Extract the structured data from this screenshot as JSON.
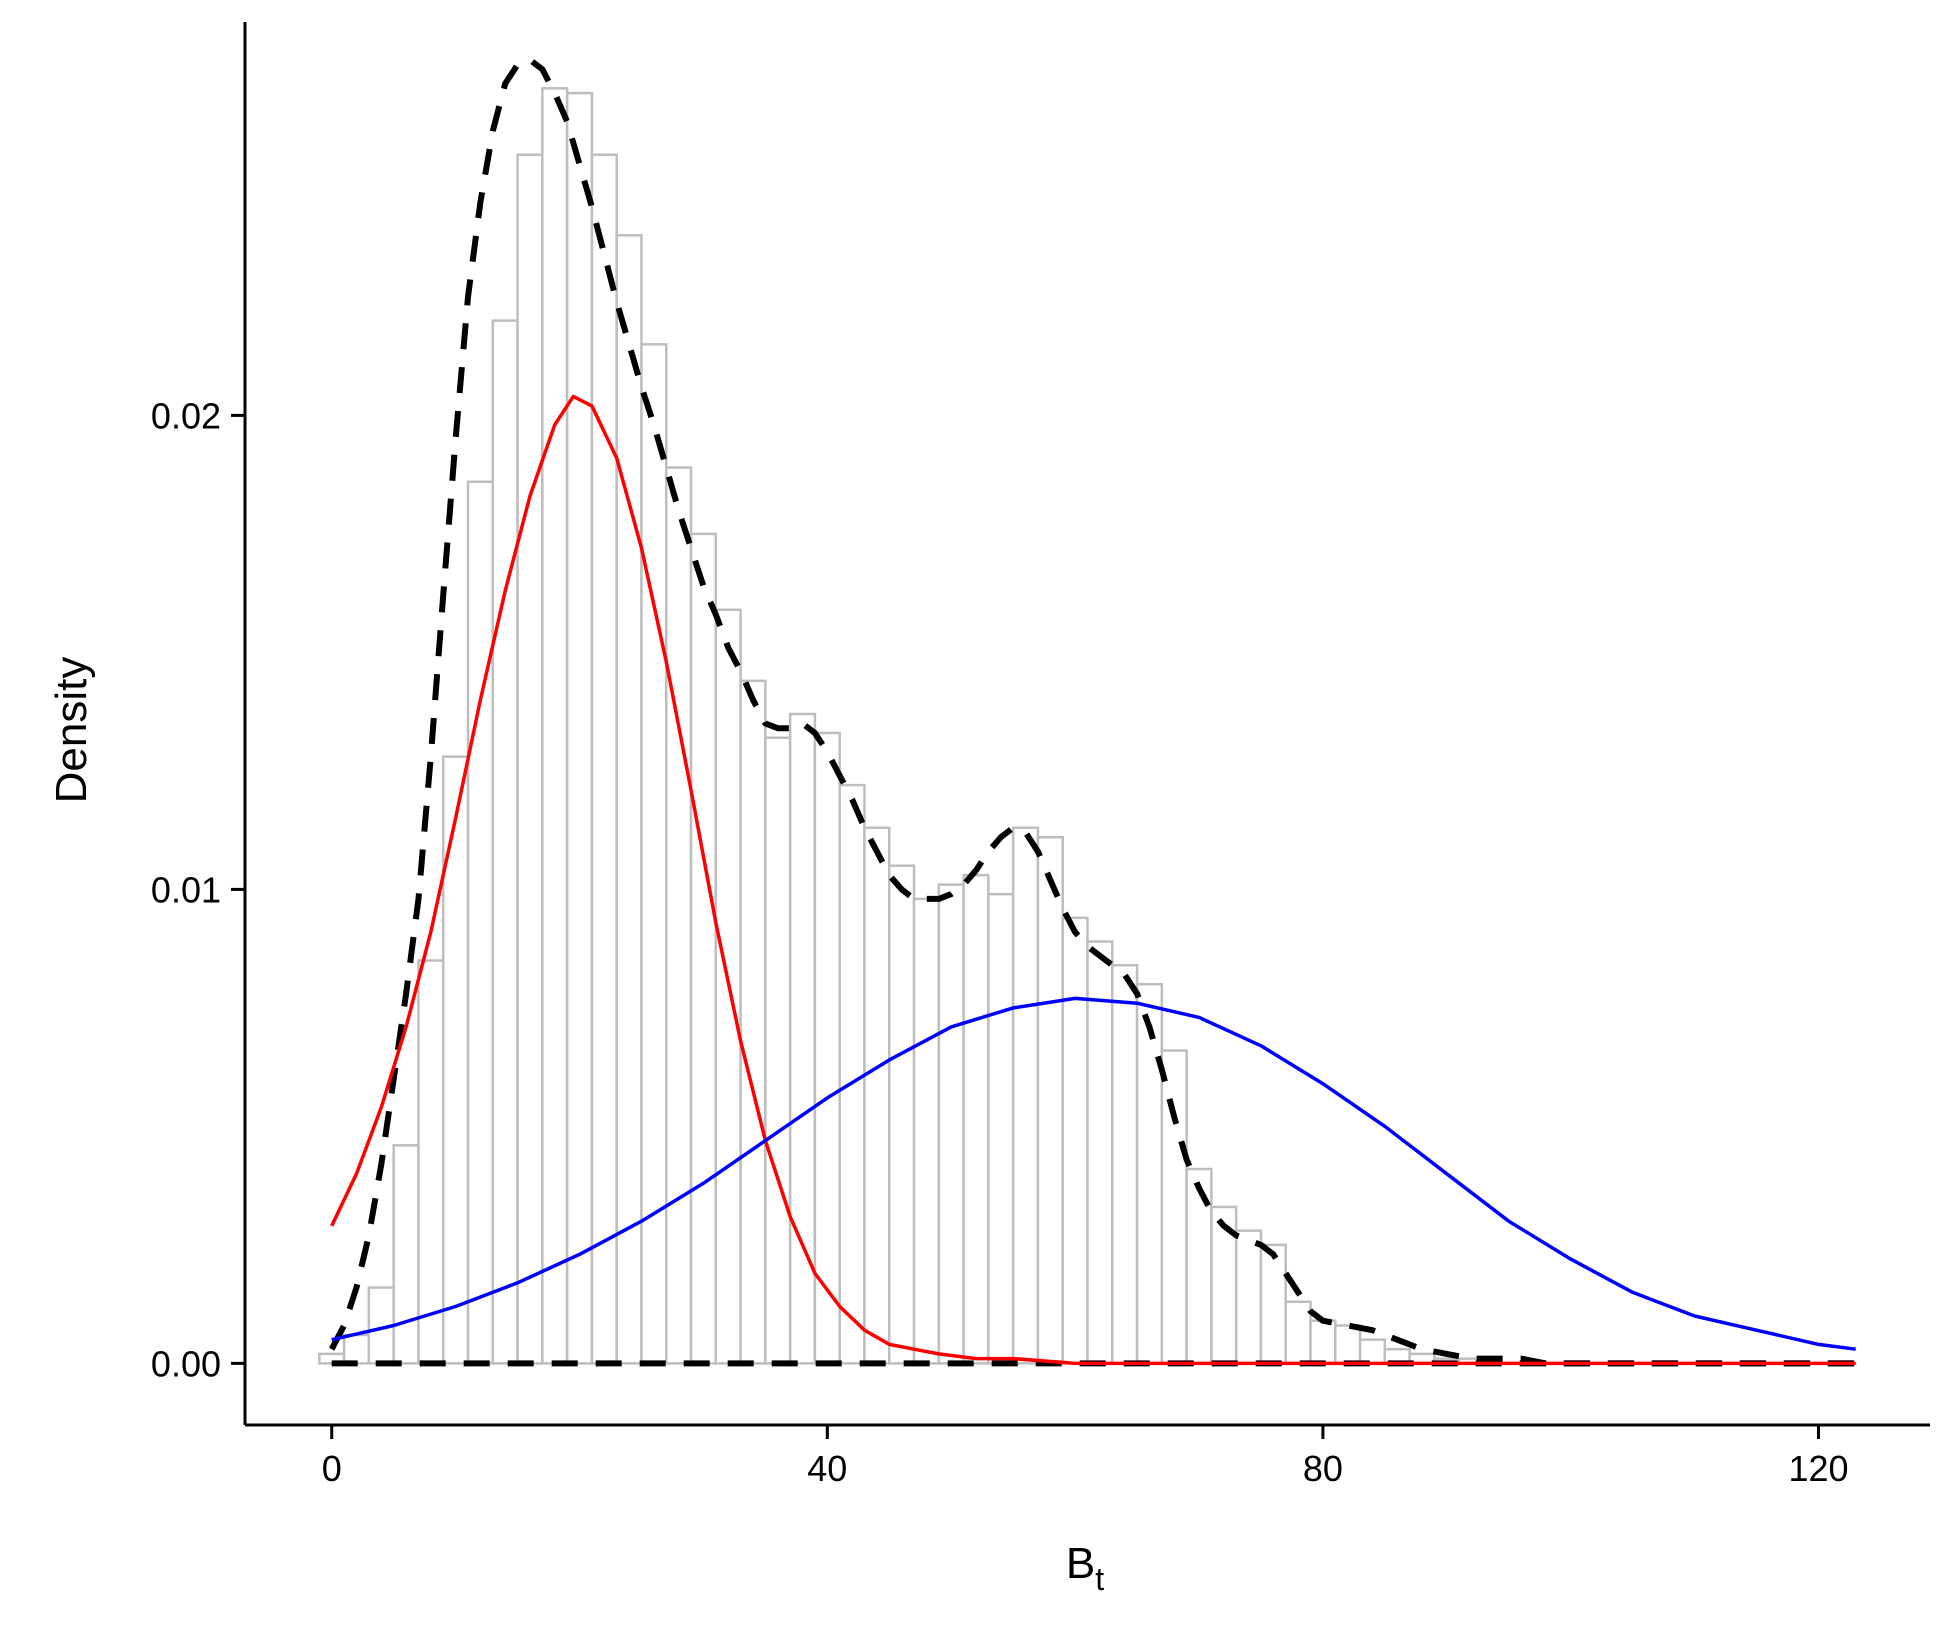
{
  "chart_data": {
    "type": "bar",
    "xlabel": "B",
    "xlabel_subscript": "t",
    "ylabel": "Density",
    "xlim": [
      -7,
      129
    ],
    "ylim": [
      -0.0013,
      0.0283
    ],
    "x_ticks": [
      0,
      40,
      80,
      120
    ],
    "x_tick_labels": [
      "0",
      "40",
      "80",
      "120"
    ],
    "y_ticks": [
      0.0,
      0.01,
      0.02
    ],
    "y_tick_labels": [
      "0.00",
      "0.01",
      "0.02"
    ],
    "grid": false,
    "histogram": {
      "bin_width": 2,
      "bin_start": -1,
      "fill": "#ffffff",
      "stroke": "#bebebe",
      "densities": [
        0.0002,
        0.0006,
        0.0016,
        0.0046,
        0.0085,
        0.0128,
        0.0186,
        0.022,
        0.0255,
        0.0269,
        0.0268,
        0.0255,
        0.0238,
        0.0215,
        0.0189,
        0.0175,
        0.0159,
        0.0144,
        0.0132,
        0.0137,
        0.0133,
        0.0122,
        0.0113,
        0.0105,
        0.0098,
        0.0101,
        0.0103,
        0.0099,
        0.0113,
        0.0111,
        0.0094,
        0.0089,
        0.0084,
        0.008,
        0.0066,
        0.0041,
        0.0033,
        0.0028,
        0.0025,
        0.0013,
        0.0009,
        0.0008,
        0.0005,
        0.0003,
        0.0002,
        0.0001,
        0.0001,
        0.0,
        0.0,
        0.0,
        0.0,
        0.0,
        0.0,
        0.0,
        0.0,
        0.0,
        0.0,
        0.0,
        0.0,
        0.0,
        0.0,
        0.0
      ]
    },
    "series": [
      {
        "kind": "dashed-density",
        "color": "#000000",
        "x": [
          0,
          1,
          2,
          3,
          4,
          5,
          6,
          7,
          8,
          9,
          10,
          11,
          12,
          13,
          14,
          15,
          16,
          17,
          18,
          19,
          20,
          21,
          22,
          23,
          24,
          25,
          26,
          27,
          28,
          29,
          30,
          31,
          32,
          33,
          34,
          35,
          36,
          37,
          38,
          39,
          40,
          41,
          42,
          43,
          44,
          45,
          46,
          47,
          48,
          49,
          50,
          51,
          52,
          53,
          54,
          55,
          56,
          57,
          58,
          59,
          60,
          61,
          62,
          63,
          64,
          65,
          66,
          67,
          68,
          69,
          70,
          71,
          72,
          73,
          74,
          75,
          76,
          77,
          78,
          79,
          80,
          82,
          84,
          86,
          88,
          90,
          92,
          94,
          96,
          98,
          100,
          102,
          104,
          106,
          108,
          110,
          112,
          114,
          116,
          118,
          120,
          123
        ],
        "y": [
          0.0003,
          0.0008,
          0.0016,
          0.0027,
          0.0042,
          0.006,
          0.0078,
          0.0098,
          0.0128,
          0.0162,
          0.0195,
          0.0225,
          0.0245,
          0.026,
          0.027,
          0.0274,
          0.0275,
          0.0273,
          0.0268,
          0.0262,
          0.0253,
          0.0244,
          0.0234,
          0.0224,
          0.0215,
          0.0206,
          0.0198,
          0.0189,
          0.018,
          0.0172,
          0.0164,
          0.0158,
          0.0151,
          0.0146,
          0.014,
          0.0135,
          0.0134,
          0.0134,
          0.0135,
          0.0133,
          0.0129,
          0.0124,
          0.0119,
          0.0113,
          0.0108,
          0.0103,
          0.01,
          0.0098,
          0.0098,
          0.0098,
          0.0099,
          0.0101,
          0.0104,
          0.0108,
          0.0111,
          0.0113,
          0.0112,
          0.0108,
          0.0102,
          0.0096,
          0.0091,
          0.0088,
          0.0086,
          0.0084,
          0.0082,
          0.0078,
          0.0071,
          0.0062,
          0.0052,
          0.0043,
          0.0037,
          0.0032,
          0.0029,
          0.0027,
          0.0026,
          0.0025,
          0.0023,
          0.0019,
          0.0015,
          0.0011,
          0.0009,
          0.0008,
          0.0007,
          0.0005,
          0.0003,
          0.0002,
          0.0001,
          0.0001,
          0.0001,
          0.0,
          0.0,
          0.0,
          0.0,
          0.0,
          0.0,
          0.0,
          0.0,
          0.0,
          0.0,
          0.0,
          0.0,
          0.0
        ]
      },
      {
        "kind": "dashed-baseline",
        "color": "#000000",
        "x": [
          0,
          123
        ],
        "y": [
          0.0,
          0.0
        ]
      },
      {
        "kind": "component-1",
        "color": "#ff0000",
        "x": [
          0,
          2,
          4,
          6,
          8,
          10,
          12,
          14,
          16,
          18,
          19.5,
          21,
          23,
          25,
          27,
          29,
          31,
          33,
          35,
          37,
          39,
          41,
          43,
          45,
          47,
          49,
          52,
          55,
          60,
          70,
          80,
          100,
          123
        ],
        "y": [
          0.0029,
          0.004,
          0.0054,
          0.0071,
          0.0091,
          0.0115,
          0.014,
          0.0163,
          0.0183,
          0.0198,
          0.0204,
          0.0202,
          0.0191,
          0.0172,
          0.0148,
          0.0121,
          0.0093,
          0.0068,
          0.0047,
          0.0031,
          0.0019,
          0.0012,
          0.0007,
          0.0004,
          0.0003,
          0.0002,
          0.0001,
          0.0001,
          0.0,
          0.0,
          0.0,
          0.0,
          0.0
        ]
      },
      {
        "kind": "component-2",
        "color": "#0000ff",
        "x": [
          0,
          5,
          10,
          15,
          20,
          25,
          30,
          35,
          40,
          45,
          50,
          55,
          60,
          65,
          70,
          75,
          80,
          85,
          90,
          95,
          100,
          105,
          110,
          115,
          120,
          123
        ],
        "y": [
          0.0005,
          0.0008,
          0.0012,
          0.0017,
          0.0023,
          0.003,
          0.0038,
          0.0047,
          0.0056,
          0.0064,
          0.0071,
          0.0075,
          0.0077,
          0.0076,
          0.0073,
          0.0067,
          0.0059,
          0.005,
          0.004,
          0.003,
          0.0022,
          0.0015,
          0.001,
          0.0007,
          0.0004,
          0.0003
        ]
      }
    ]
  }
}
